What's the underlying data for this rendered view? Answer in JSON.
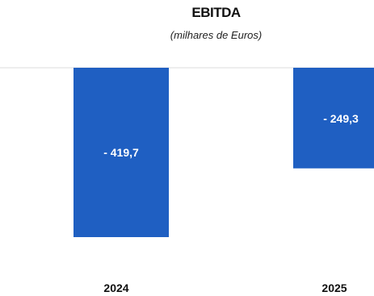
{
  "chart_data": {
    "type": "bar",
    "title": "EBITDA",
    "subtitle": "(milhares de Euros)",
    "categories": [
      "2024",
      "2025"
    ],
    "values": [
      -419.7,
      -249.3
    ],
    "data_labels": [
      "- 419,7",
      "- 249,3"
    ],
    "xlabel": "",
    "ylabel": "",
    "ylim": [
      -450,
      0
    ],
    "grid": false,
    "legend": "none",
    "bar_color": "#1f5fc2",
    "baseline_color": "#eeeeee"
  }
}
